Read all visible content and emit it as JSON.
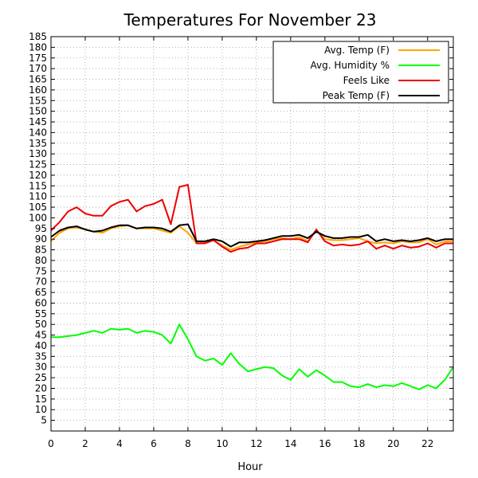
{
  "chart_data": {
    "type": "line",
    "title": "Temperatures For November 23",
    "xlabel": "Hour",
    "ylabel": "",
    "xlim": [
      0,
      23.5
    ],
    "ylim": [
      0,
      185
    ],
    "xticks": [
      0,
      2,
      4,
      6,
      8,
      10,
      12,
      14,
      16,
      18,
      20,
      22
    ],
    "yticks": [
      5,
      10,
      15,
      20,
      25,
      30,
      35,
      40,
      45,
      50,
      55,
      60,
      65,
      70,
      75,
      80,
      85,
      90,
      95,
      100,
      105,
      110,
      115,
      120,
      125,
      130,
      135,
      140,
      145,
      150,
      155,
      160,
      165,
      170,
      175,
      180,
      185
    ],
    "grid": true,
    "legend_position": "top-right",
    "x": [
      0,
      0.5,
      1,
      1.5,
      2,
      2.5,
      3,
      3.5,
      4,
      4.5,
      5,
      5.5,
      6,
      6.5,
      7,
      7.5,
      8,
      8.5,
      9,
      9.5,
      10,
      10.5,
      11,
      11.5,
      12,
      12.5,
      13,
      13.5,
      14,
      14.5,
      15,
      15.5,
      16,
      16.5,
      17,
      17.5,
      18,
      18.5,
      19,
      19.5,
      20,
      20.5,
      21,
      21.5,
      22,
      22.5,
      23,
      23.5
    ],
    "series": [
      {
        "name": "Avg. Temp (F)",
        "color": "#ffa500",
        "values": [
          89,
          93,
          95,
          95.5,
          94.5,
          93.5,
          93,
          95,
          96,
          96.5,
          95,
          95,
          95,
          94,
          93,
          96,
          93,
          88,
          88.5,
          89.5,
          87,
          85,
          86.5,
          87.5,
          88.5,
          89,
          90,
          90.5,
          90,
          91,
          89,
          94,
          90,
          89.5,
          89.5,
          90,
          90.5,
          89,
          88,
          88.5,
          88,
          89,
          88.5,
          88.5,
          90,
          87.5,
          89,
          89
        ]
      },
      {
        "name": "Avg. Humidity %",
        "color": "#00ff00",
        "values": [
          44,
          44,
          44.5,
          45,
          46,
          47,
          46,
          48,
          47.5,
          48,
          46,
          47,
          46.5,
          45,
          41,
          50,
          43,
          35,
          33,
          34,
          31,
          36.5,
          31.5,
          28,
          29,
          30,
          29.5,
          26,
          24,
          29,
          25.5,
          28.5,
          26,
          23,
          23,
          21,
          20.5,
          22,
          20.5,
          21.5,
          21,
          22.5,
          21,
          19.5,
          21.5,
          20,
          24,
          30
        ]
      },
      {
        "name": "Feels Like",
        "color": "#ee0000",
        "values": [
          94,
          98,
          103,
          105,
          102,
          101,
          101,
          105.5,
          107.5,
          108.5,
          103,
          105.5,
          106.5,
          108.5,
          97,
          114.5,
          115.5,
          88,
          88,
          89.5,
          86.5,
          84,
          85.5,
          86,
          88,
          88,
          89,
          90,
          90,
          90,
          88.5,
          94.5,
          89,
          87,
          87.5,
          87,
          87.5,
          89,
          85.5,
          87,
          85.5,
          87,
          86,
          86.5,
          88,
          86,
          88,
          88
        ]
      },
      {
        "name": "Peak Temp (F)",
        "color": "#000000",
        "values": [
          91,
          94,
          95.5,
          96,
          94.5,
          93.5,
          94,
          95.5,
          96.5,
          96.5,
          95,
          95.5,
          95.5,
          95,
          93.5,
          96.5,
          97,
          89,
          89,
          90,
          89,
          86.5,
          88.5,
          88.5,
          89,
          89.5,
          90.5,
          91.5,
          91.5,
          92,
          90.5,
          93.5,
          91.5,
          90.5,
          90.5,
          91,
          91,
          92,
          89,
          90,
          89,
          89.5,
          89,
          89.5,
          90.5,
          89,
          90,
          90
        ]
      }
    ]
  }
}
